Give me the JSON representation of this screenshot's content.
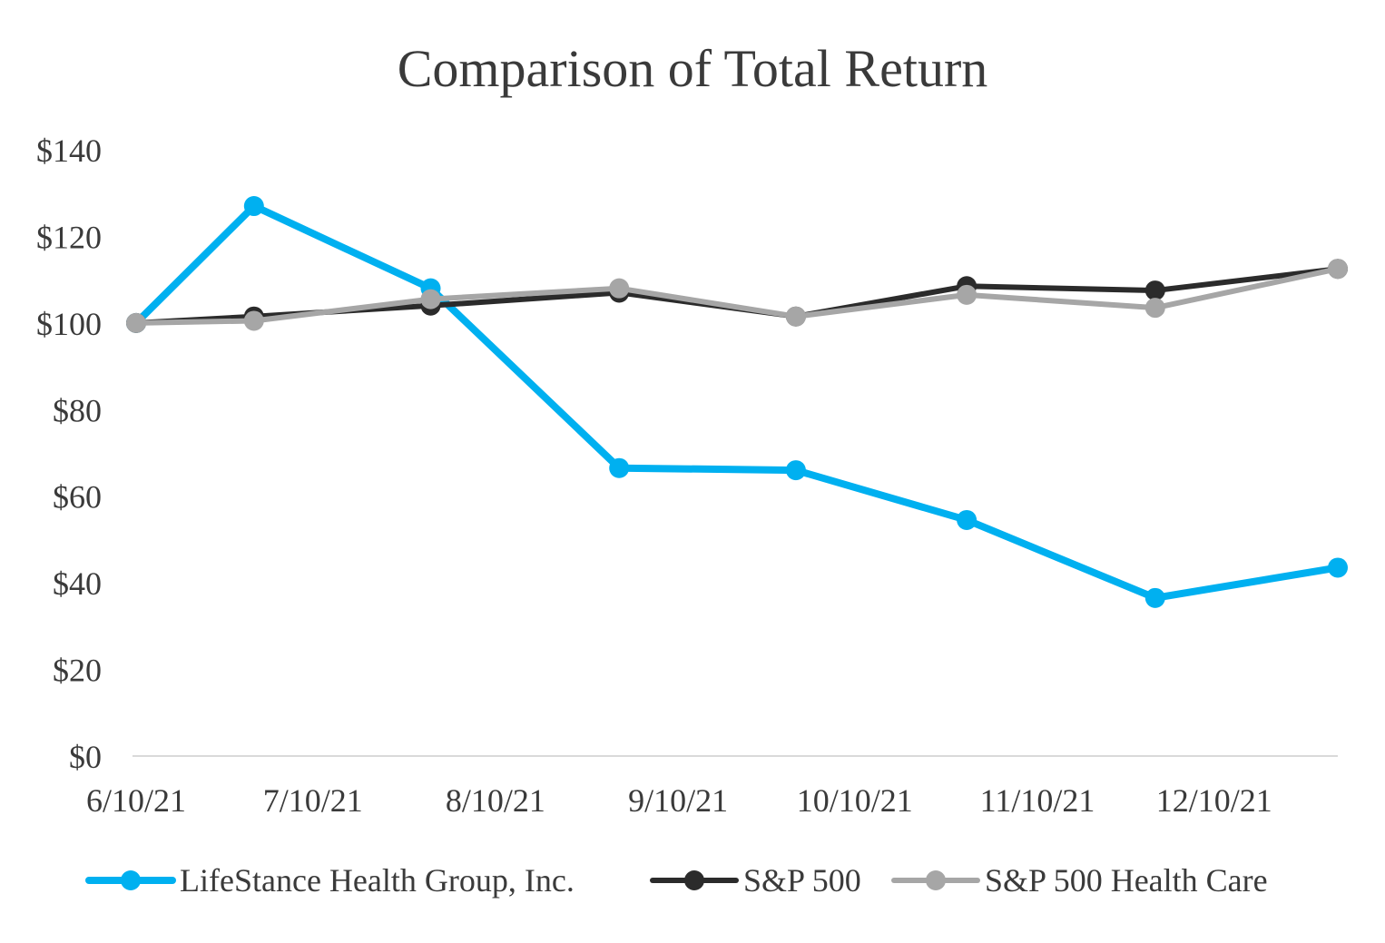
{
  "chart_data": {
    "type": "line",
    "title": "Comparison of Total Return",
    "xlabel": "",
    "ylabel": "",
    "x_tick_labels": [
      "6/10/21",
      "7/10/21",
      "8/10/21",
      "9/10/21",
      "10/10/21",
      "11/10/21",
      "12/10/21"
    ],
    "y_tick_labels": [
      "$0",
      "$20",
      "$40",
      "$60",
      "$80",
      "$100",
      "$120",
      "$140"
    ],
    "y_ticks": [
      0,
      20,
      40,
      60,
      80,
      100,
      120,
      140
    ],
    "ylim": [
      0,
      140
    ],
    "x_range": [
      "2021-06-10",
      "2021-12-31"
    ],
    "grid": false,
    "legend_position": "bottom",
    "x": [
      "2021-06-10",
      "2021-06-30",
      "2021-07-30",
      "2021-08-31",
      "2021-09-30",
      "2021-10-29",
      "2021-11-30",
      "2021-12-31"
    ],
    "series": [
      {
        "name": "LifeStance Health Group, Inc.",
        "color": "#00b0f0",
        "values": [
          100,
          127,
          108,
          66.5,
          66,
          54.5,
          36.5,
          43.5
        ]
      },
      {
        "name": "S&P 500",
        "color": "#2b2b2b",
        "values": [
          100,
          101.5,
          104,
          107,
          101.5,
          108.5,
          107.5,
          112.5
        ]
      },
      {
        "name": "S&P 500 Health Care",
        "color": "#a6a6a6",
        "values": [
          100,
          100.5,
          105.5,
          108,
          101.5,
          106.5,
          103.5,
          112.5
        ]
      }
    ]
  }
}
